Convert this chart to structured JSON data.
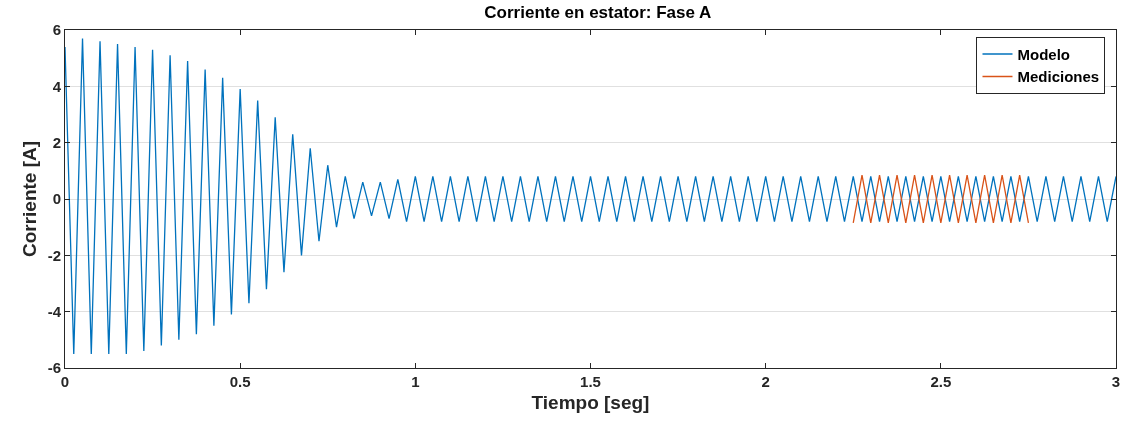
{
  "chart_data": {
    "type": "line",
    "title": "Corriente en estator: Fase A",
    "xlabel": "Tiempo [seg]",
    "ylabel": "Corriente [A]",
    "xlim": [
      0,
      3
    ],
    "xticks": [
      0,
      0.5,
      1,
      1.5,
      2,
      2.5,
      3
    ],
    "ylim": [
      -6,
      6
    ],
    "yticks": [
      -6,
      -4,
      -2,
      0,
      2,
      4,
      6
    ],
    "grid": "y",
    "legend": "top right",
    "series": [
      {
        "name": "Modelo",
        "color": "#0072bd",
        "x": [
          0,
          0.025,
          0.05,
          0.075,
          0.1,
          0.125,
          0.15,
          0.175,
          0.2,
          0.225,
          0.25,
          0.275,
          0.3,
          0.325,
          0.35,
          0.375,
          0.4,
          0.425,
          0.45,
          0.475,
          0.5,
          0.525,
          0.55,
          0.575,
          0.6,
          0.625,
          0.65,
          0.675,
          0.7,
          0.725,
          0.75,
          0.775,
          0.8,
          0.825,
          0.85,
          0.875,
          0.9,
          0.925,
          0.95,
          0.975,
          1,
          1.025,
          1.05,
          1.075,
          1.1,
          1.125,
          1.15,
          1.175,
          1.2,
          1.225,
          1.25,
          1.275,
          1.3,
          1.325,
          1.35,
          1.375,
          1.4,
          1.425,
          1.45,
          1.475,
          1.5,
          1.525,
          1.55,
          1.575,
          1.6,
          1.625,
          1.65,
          1.675,
          1.7,
          1.725,
          1.75,
          1.775,
          1.8,
          1.825,
          1.85,
          1.875,
          1.9,
          1.925,
          1.95,
          1.975,
          2,
          2.025,
          2.05,
          2.075,
          2.1,
          2.125,
          2.15,
          2.175,
          2.2,
          2.225,
          2.25,
          2.275,
          2.3,
          2.325,
          2.35,
          2.375,
          2.4,
          2.425,
          2.45,
          2.475,
          2.5,
          2.525,
          2.55,
          2.575,
          2.6,
          2.625,
          2.65,
          2.675,
          2.7,
          2.725,
          2.75,
          2.775,
          2.8,
          2.825,
          2.85,
          2.875,
          2.9,
          2.925,
          2.95,
          2.975,
          3
        ],
        "values": [
          5.4,
          -5.5,
          5.7,
          -5.5,
          5.6,
          -5.5,
          5.5,
          -5.5,
          5.4,
          -5.4,
          5.3,
          -5.2,
          5.1,
          -5.0,
          4.9,
          -4.8,
          4.6,
          -4.5,
          4.3,
          -4.1,
          3.9,
          -3.7,
          3.5,
          -3.2,
          2.9,
          -2.6,
          2.3,
          -2.0,
          1.8,
          -1.5,
          1.2,
          -1.0,
          0.8,
          -0.7,
          0.6,
          -0.6,
          0.6,
          -0.7,
          0.7,
          -0.8,
          0.8,
          -0.8,
          0.8,
          -0.8,
          0.8,
          -0.8,
          0.8,
          -0.8,
          0.8,
          -0.8,
          0.8,
          -0.8,
          0.8,
          -0.8,
          0.8,
          -0.8,
          0.8,
          -0.8,
          0.8,
          -0.8,
          0.8,
          -0.8,
          0.8,
          -0.8,
          0.8,
          -0.8,
          0.8,
          -0.8,
          0.8,
          -0.8,
          0.8,
          -0.8,
          0.8,
          -0.8,
          0.8,
          -0.8,
          0.8,
          -0.8,
          0.8,
          -0.8,
          0.8,
          -0.8,
          0.8,
          -0.8,
          0.8,
          -0.8,
          0.8,
          -0.8,
          0.8,
          -0.8,
          0.8,
          -0.8,
          0.8,
          -0.8,
          0.8,
          -0.8,
          0.8,
          -0.8,
          0.8,
          -0.8,
          0.8,
          -0.8,
          0.8,
          -0.8,
          0.8,
          -0.8,
          0.8,
          -0.8,
          0.8,
          -0.8,
          0.8,
          -0.8,
          0.8,
          -0.8,
          0.8,
          -0.8,
          0.8,
          -0.8,
          0.8,
          -0.8,
          0.8
        ]
      },
      {
        "name": "Mediciones",
        "color": "#d95319",
        "x": [
          2.25,
          2.275,
          2.3,
          2.325,
          2.35,
          2.375,
          2.4,
          2.425,
          2.45,
          2.475,
          2.5,
          2.525,
          2.55,
          2.575,
          2.6,
          2.625,
          2.65,
          2.675,
          2.7,
          2.725,
          2.75
        ],
        "values": [
          -0.85,
          0.85,
          -0.85,
          0.85,
          -0.85,
          0.85,
          -0.85,
          0.85,
          -0.85,
          0.85,
          -0.85,
          0.85,
          -0.85,
          0.85,
          -0.85,
          0.85,
          -0.85,
          0.85,
          -0.85,
          0.85,
          -0.85
        ]
      }
    ]
  }
}
